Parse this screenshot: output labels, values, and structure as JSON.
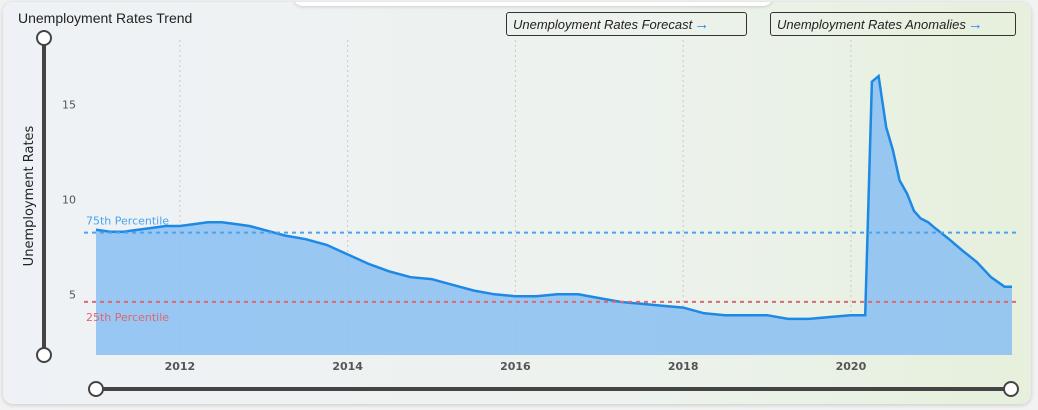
{
  "title": "Unemployment Rates Trend",
  "buttons": {
    "forecast": "Unemployment Rates Forecast",
    "anomalies": "Unemployment Rates Anomalies",
    "arrow_icon": "arrow-right-icon"
  },
  "colors": {
    "line": "#1e88e5",
    "area": "#88c0f2",
    "p75": "#4aa3ef",
    "p25": "#e06670",
    "slider": "#444444"
  },
  "chart_data": {
    "type": "area",
    "title": "Unemployment Rates Trend",
    "xlabel": "",
    "ylabel": "Unemployment Rates",
    "xlim": [
      2011.0,
      2021.92
    ],
    "ylim": [
      1.8,
      18.4
    ],
    "xticks": [
      2012,
      2014,
      2016,
      2018,
      2020
    ],
    "xtick_labels": [
      "2012",
      "2014",
      "2016",
      "2018",
      "2020"
    ],
    "yticks": [
      5,
      10,
      15
    ],
    "ytick_labels": [
      "5",
      "10",
      "15"
    ],
    "grid": "vertical dotted",
    "series": [
      {
        "x": [
          2011.0,
          2011.17,
          2011.33,
          2011.5,
          2011.67,
          2011.83,
          2012.0,
          2012.17,
          2012.33,
          2012.5,
          2012.67,
          2012.83,
          2013.0,
          2013.25,
          2013.5,
          2013.75,
          2014.0,
          2014.25,
          2014.5,
          2014.75,
          2015.0,
          2015.25,
          2015.5,
          2015.75,
          2016.0,
          2016.25,
          2016.5,
          2016.75,
          2017.0,
          2017.25,
          2017.5,
          2017.75,
          2018.0,
          2018.25,
          2018.5,
          2018.75,
          2019.0,
          2019.25,
          2019.5,
          2019.75,
          2020.0,
          2020.17,
          2020.25,
          2020.33,
          2020.42,
          2020.5,
          2020.58,
          2020.67,
          2020.75,
          2020.83,
          2020.92,
          2021.0,
          2021.17,
          2021.33,
          2021.5,
          2021.67,
          2021.83,
          2021.92
        ],
        "y": [
          8.4,
          8.3,
          8.3,
          8.4,
          8.5,
          8.6,
          8.6,
          8.7,
          8.8,
          8.8,
          8.7,
          8.6,
          8.4,
          8.1,
          7.9,
          7.6,
          7.1,
          6.6,
          6.2,
          5.9,
          5.8,
          5.5,
          5.2,
          5.0,
          4.9,
          4.9,
          5.0,
          5.0,
          4.8,
          4.6,
          4.5,
          4.4,
          4.3,
          4.0,
          3.9,
          3.9,
          3.9,
          3.7,
          3.7,
          3.8,
          3.9,
          3.9,
          16.2,
          16.5,
          13.8,
          12.6,
          11.0,
          10.3,
          9.4,
          9.0,
          8.8,
          8.5,
          7.9,
          7.3,
          6.7,
          5.9,
          5.4,
          5.4
        ]
      }
    ],
    "reference_lines": [
      {
        "name": "75th Percentile",
        "y": 8.25
      },
      {
        "name": "25th Percentile",
        "y": 4.6
      }
    ]
  }
}
